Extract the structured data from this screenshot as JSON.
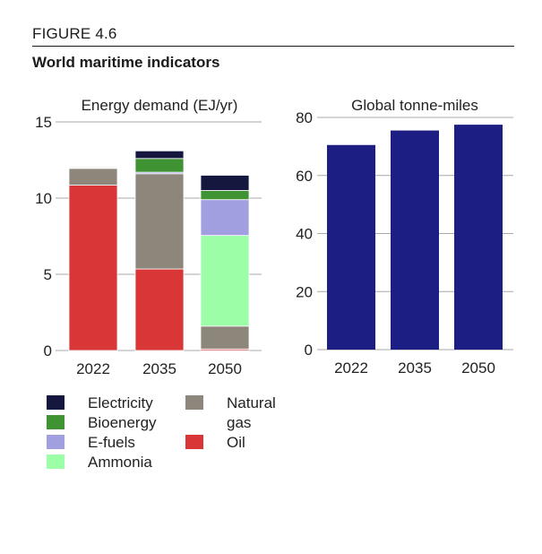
{
  "figure": {
    "label": "FIGURE 4.6",
    "title": "World maritime indicators"
  },
  "colors": {
    "electricity": "#15173f",
    "bioenergy": "#3f9332",
    "efuels": "#a29fe1",
    "ammonia": "#9cffa8",
    "natural_gas": "#8d867a",
    "oil": "#d93737",
    "tonne_miles": "#1d1e84",
    "grid": "#a8a8a8"
  },
  "chart_data": [
    {
      "type": "bar",
      "stacked": true,
      "title": "Energy demand (EJ/yr)",
      "categories": [
        "2022",
        "2035",
        "2050"
      ],
      "ylim": [
        0,
        15
      ],
      "yticks": [
        0,
        5,
        10,
        15
      ],
      "series": [
        {
          "name": "Oil",
          "key": "oil",
          "values": [
            10.85,
            5.35,
            0.1
          ]
        },
        {
          "name": "Natural gas",
          "key": "natural_gas",
          "values": [
            1.1,
            6.25,
            1.5
          ]
        },
        {
          "name": "Ammonia",
          "key": "ammonia",
          "values": [
            0,
            0,
            5.95
          ]
        },
        {
          "name": "E-fuels",
          "key": "efuels",
          "values": [
            0,
            0.1,
            2.35
          ]
        },
        {
          "name": "Bioenergy",
          "key": "bioenergy",
          "values": [
            0.05,
            0.9,
            0.6
          ]
        },
        {
          "name": "Electricity",
          "key": "electricity",
          "values": [
            0.05,
            0.5,
            1.0
          ]
        }
      ],
      "legend": [
        {
          "label": "Electricity",
          "key": "electricity"
        },
        {
          "label": "Bioenergy",
          "key": "bioenergy"
        },
        {
          "label": "E-fuels",
          "key": "efuels"
        },
        {
          "label": "Ammonia",
          "key": "ammonia"
        },
        {
          "label": "Natural",
          "label2": "gas",
          "key": "natural_gas"
        },
        {
          "label": "Oil",
          "key": "oil"
        }
      ]
    },
    {
      "type": "bar",
      "title": "Global tonne-miles",
      "categories": [
        "2022",
        "2035",
        "2050"
      ],
      "ylim": [
        0,
        80
      ],
      "yticks": [
        0,
        20,
        40,
        60,
        80
      ],
      "values": [
        70.5,
        75.5,
        77.5
      ]
    }
  ]
}
